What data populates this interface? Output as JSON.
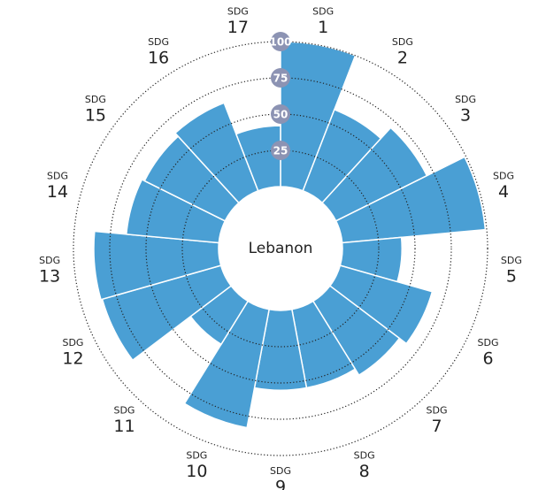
{
  "chart_data": {
    "type": "polar_bar",
    "title": "Lebanon",
    "category_prefix": "SDG",
    "categories": [
      "1",
      "2",
      "3",
      "4",
      "5",
      "6",
      "7",
      "8",
      "9",
      "10",
      "11",
      "12",
      "13",
      "14",
      "15",
      "16",
      "17"
    ],
    "values": [
      100,
      60,
      70,
      99,
      41,
      66,
      60,
      55,
      55,
      83,
      35,
      85,
      86,
      64,
      62,
      65,
      42
    ],
    "color": "#4a9fd4",
    "rlim": [
      0,
      100
    ],
    "rticks": [
      25,
      50,
      75,
      100
    ],
    "grid": true
  }
}
